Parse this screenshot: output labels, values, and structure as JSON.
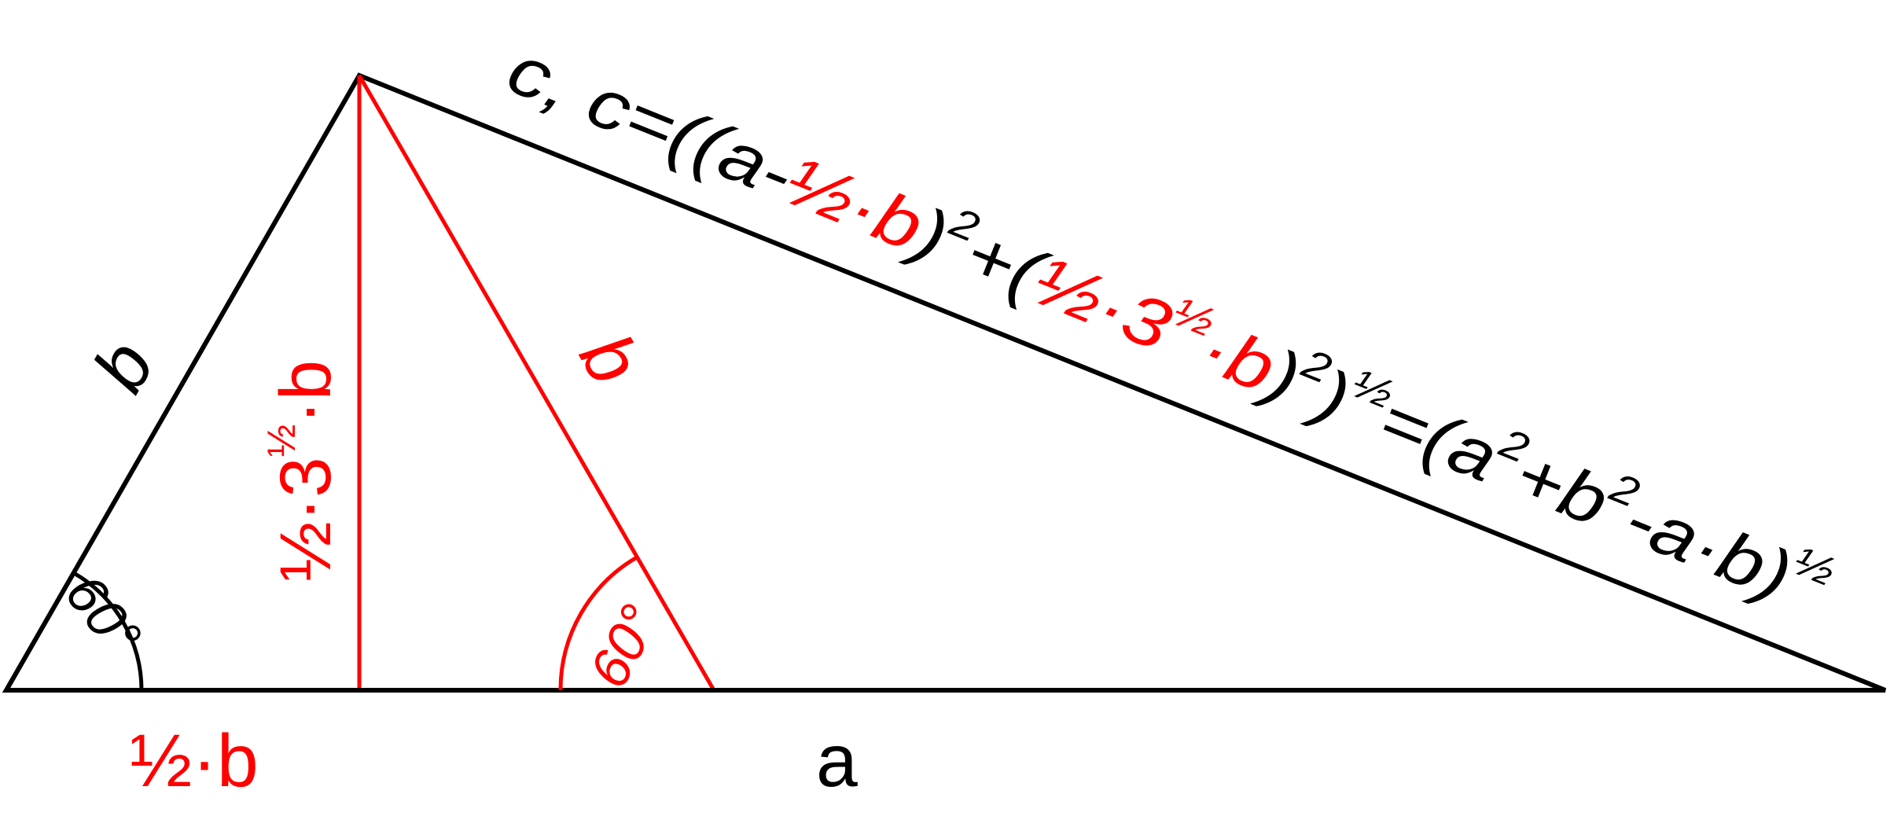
{
  "colors": {
    "black": "#000000",
    "red": "#ff0000"
  },
  "labels": {
    "side_b": "b",
    "side_b_red": "b",
    "base_a": "a",
    "half_b": "½·b",
    "height": "½·3",
    "height_exp": "½",
    "height_tail": "·b",
    "angle_left": "60°",
    "angle_red": "60°"
  },
  "formula": [
    {
      "text": "c, c=((a-",
      "color": "black"
    },
    {
      "text": "½·b",
      "color": "red"
    },
    {
      "text": ")",
      "color": "black"
    },
    {
      "text": "2",
      "color": "black",
      "sup": true
    },
    {
      "text": "+(",
      "color": "black"
    },
    {
      "text": "½·3",
      "color": "red"
    },
    {
      "text": "½",
      "color": "red",
      "sup": true
    },
    {
      "text": "·b",
      "color": "red"
    },
    {
      "text": ")",
      "color": "black"
    },
    {
      "text": "2",
      "color": "black",
      "sup": true
    },
    {
      "text": ")",
      "color": "black"
    },
    {
      "text": "½",
      "color": "black",
      "sup": true
    },
    {
      "text": "=(a",
      "color": "black"
    },
    {
      "text": "2",
      "color": "black",
      "sup": true
    },
    {
      "text": "+b",
      "color": "black"
    },
    {
      "text": "2",
      "color": "black",
      "sup": true
    },
    {
      "text": "-a·b)",
      "color": "black"
    },
    {
      "text": "½",
      "color": "black",
      "sup": true
    }
  ]
}
